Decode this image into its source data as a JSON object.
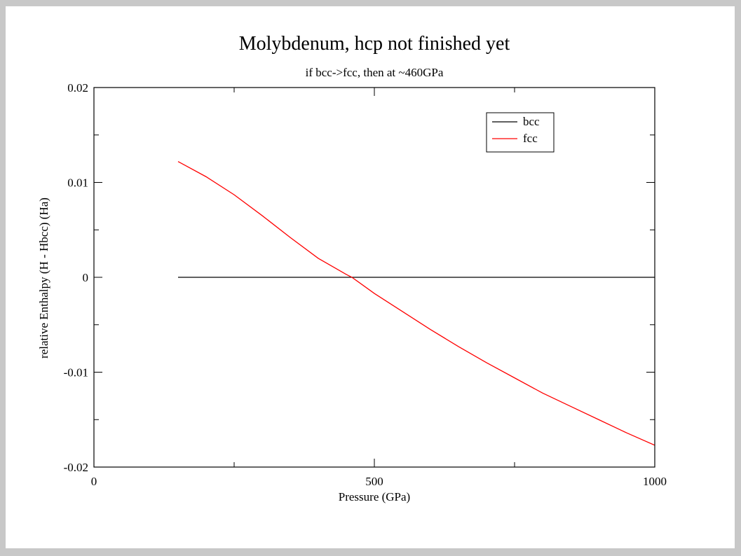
{
  "chart_data": {
    "type": "line",
    "title": "Molybdenum, hcp not finished yet",
    "subtitle": "if bcc->fcc, then at ~460GPa",
    "xlabel": "Pressure (GPa)",
    "ylabel": "relative Enthalpy (H - Hbcc) (Ha)",
    "xlim": [
      0,
      1000
    ],
    "ylim": [
      -0.02,
      0.02
    ],
    "x_major_ticks": [
      0,
      500,
      1000
    ],
    "x_minor_ticks": [
      250,
      750
    ],
    "x_tick_labels": [
      "0",
      "500",
      "1000"
    ],
    "y_major_ticks": [
      -0.02,
      -0.01,
      0,
      0.01,
      0.02
    ],
    "y_minor_ticks": [
      -0.015,
      -0.005,
      0.005,
      0.015
    ],
    "y_tick_labels": [
      "-0.02",
      "-0.01",
      "0",
      "0.01",
      "0.02"
    ],
    "grid": false,
    "legend_position": "top-right",
    "series": [
      {
        "name": "bcc",
        "color": "#000000",
        "x": [
          150,
          1000
        ],
        "y": [
          0,
          0
        ]
      },
      {
        "name": "fcc",
        "color": "#ff0000",
        "x": [
          150,
          200,
          250,
          300,
          350,
          400,
          450,
          460,
          500,
          550,
          600,
          650,
          700,
          750,
          800,
          850,
          900,
          950,
          1000
        ],
        "y": [
          0.0122,
          0.0106,
          0.0087,
          0.0065,
          0.0042,
          0.002,
          0.0003,
          0.0,
          -0.0017,
          -0.0036,
          -0.0055,
          -0.0073,
          -0.009,
          -0.0106,
          -0.0122,
          -0.0136,
          -0.015,
          -0.0164,
          -0.0177
        ]
      }
    ]
  }
}
